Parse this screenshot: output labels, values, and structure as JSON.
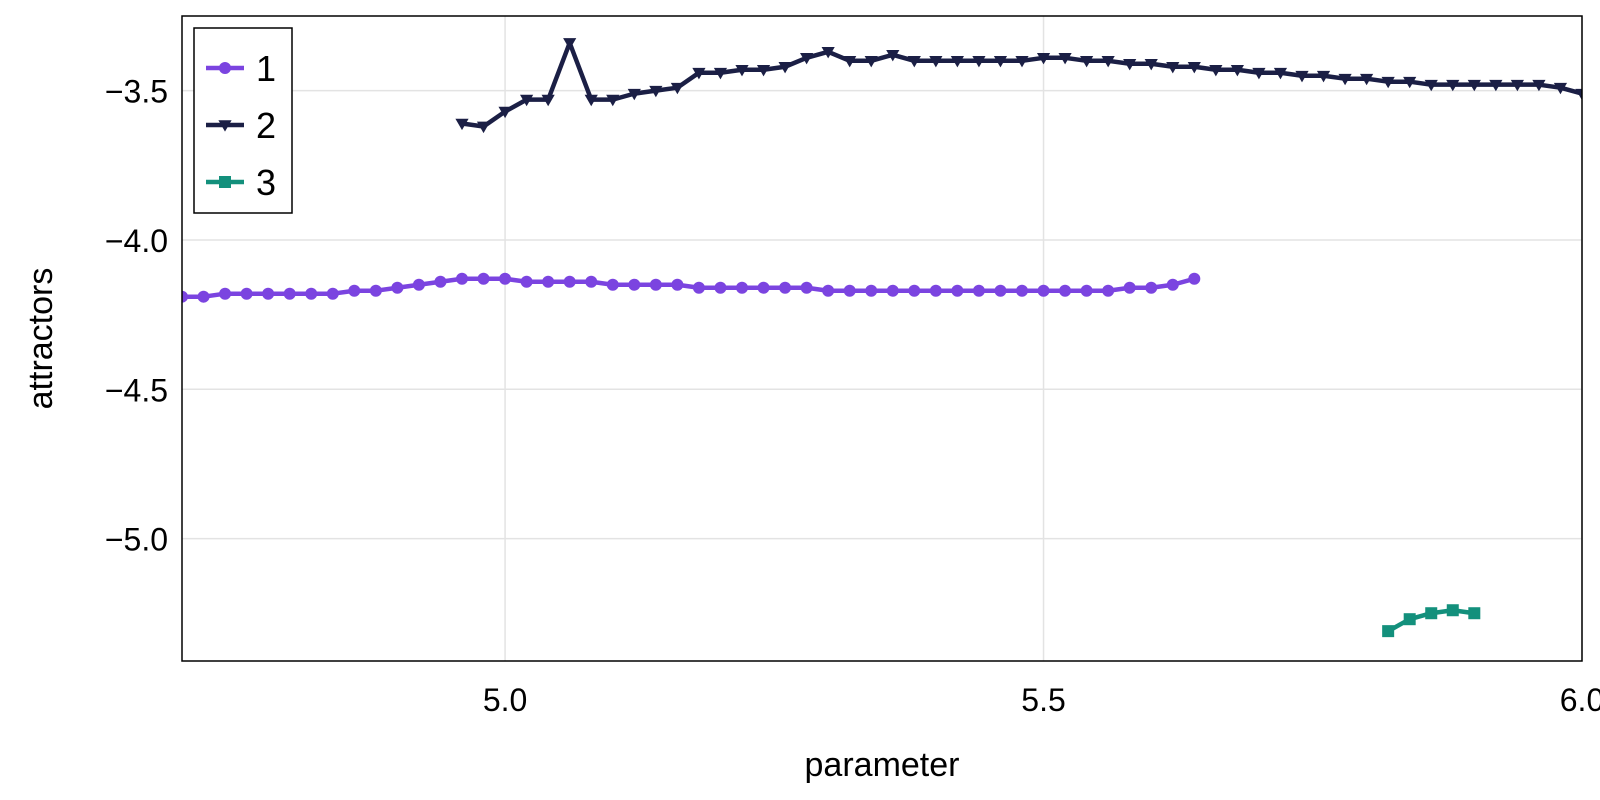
{
  "chart_data": {
    "type": "line",
    "title": "",
    "xlabel": "parameter",
    "ylabel": "attractors",
    "xlim": [
      4.7,
      6.0
    ],
    "ylim": [
      -5.41,
      -3.25
    ],
    "x_ticks": [
      5.0,
      5.5,
      6.0
    ],
    "x_tick_labels": [
      "5.0",
      "5.5",
      "6.0"
    ],
    "y_ticks": [
      -3.5,
      -4.0,
      -4.5,
      -5.0
    ],
    "y_tick_labels": [
      "−3.5",
      "−4.0",
      "−4.5",
      "−5.0"
    ],
    "grid": true,
    "legend_position": "top-left",
    "series": [
      {
        "name": "1",
        "color": "#7b44e0",
        "marker": "circle",
        "x": [
          4.7,
          4.72,
          4.74,
          4.76,
          4.78,
          4.8,
          4.82,
          4.84,
          4.86,
          4.88,
          4.9,
          4.92,
          4.94,
          4.96,
          4.98,
          5.0,
          5.02,
          5.04,
          5.06,
          5.08,
          5.1,
          5.12,
          5.14,
          5.16,
          5.18,
          5.2,
          5.22,
          5.24,
          5.26,
          5.28,
          5.3,
          5.32,
          5.34,
          5.36,
          5.38,
          5.4,
          5.42,
          5.44,
          5.46,
          5.48,
          5.5,
          5.52,
          5.54,
          5.56,
          5.58,
          5.6,
          5.62,
          5.64
        ],
        "y": [
          -4.19,
          -4.19,
          -4.18,
          -4.18,
          -4.18,
          -4.18,
          -4.18,
          -4.18,
          -4.17,
          -4.17,
          -4.16,
          -4.15,
          -4.14,
          -4.13,
          -4.13,
          -4.13,
          -4.14,
          -4.14,
          -4.14,
          -4.14,
          -4.15,
          -4.15,
          -4.15,
          -4.15,
          -4.16,
          -4.16,
          -4.16,
          -4.16,
          -4.16,
          -4.16,
          -4.17,
          -4.17,
          -4.17,
          -4.17,
          -4.17,
          -4.17,
          -4.17,
          -4.17,
          -4.17,
          -4.17,
          -4.17,
          -4.17,
          -4.17,
          -4.17,
          -4.16,
          -4.16,
          -4.15,
          -4.13
        ]
      },
      {
        "name": "2",
        "color": "#1b1f45",
        "marker": "triangle-down",
        "x": [
          4.96,
          4.98,
          5.0,
          5.02,
          5.04,
          5.06,
          5.08,
          5.1,
          5.12,
          5.14,
          5.16,
          5.18,
          5.2,
          5.22,
          5.24,
          5.26,
          5.28,
          5.3,
          5.32,
          5.34,
          5.36,
          5.38,
          5.4,
          5.42,
          5.44,
          5.46,
          5.48,
          5.5,
          5.52,
          5.54,
          5.56,
          5.58,
          5.6,
          5.62,
          5.64,
          5.66,
          5.68,
          5.7,
          5.72,
          5.74,
          5.76,
          5.78,
          5.8,
          5.82,
          5.84,
          5.86,
          5.88,
          5.9,
          5.92,
          5.94,
          5.96,
          5.98,
          6.0
        ],
        "y": [
          -3.61,
          -3.62,
          -3.57,
          -3.53,
          -3.53,
          -3.34,
          -3.53,
          -3.53,
          -3.51,
          -3.5,
          -3.49,
          -3.44,
          -3.44,
          -3.43,
          -3.43,
          -3.42,
          -3.39,
          -3.37,
          -3.4,
          -3.4,
          -3.38,
          -3.4,
          -3.4,
          -3.4,
          -3.4,
          -3.4,
          -3.4,
          -3.39,
          -3.39,
          -3.4,
          -3.4,
          -3.41,
          -3.41,
          -3.42,
          -3.42,
          -3.43,
          -3.43,
          -3.44,
          -3.44,
          -3.45,
          -3.45,
          -3.46,
          -3.46,
          -3.47,
          -3.47,
          -3.48,
          -3.48,
          -3.48,
          -3.48,
          -3.48,
          -3.48,
          -3.49,
          -3.51
        ]
      },
      {
        "name": "3",
        "color": "#13907c",
        "marker": "square",
        "x": [
          5.82,
          5.84,
          5.86,
          5.88,
          5.9
        ],
        "y": [
          -5.31,
          -5.27,
          -5.25,
          -5.24,
          -5.25
        ]
      }
    ]
  }
}
